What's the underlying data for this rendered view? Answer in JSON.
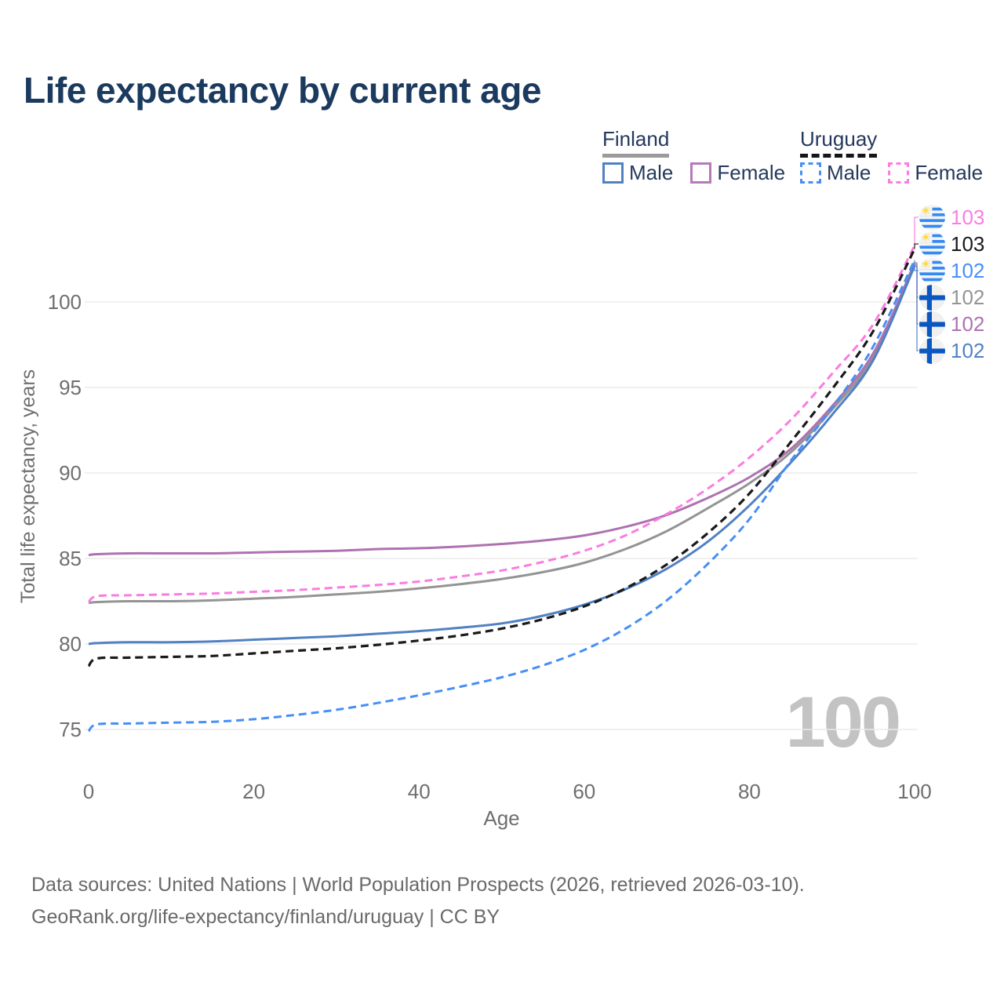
{
  "title": "Life expectancy by current age",
  "legend": {
    "groups": [
      {
        "label": "Finland",
        "line_style": "solid",
        "line_color": "#9b9b9b",
        "items": [
          {
            "label": "Male",
            "color": "#5181c2",
            "line_style": "solid"
          },
          {
            "label": "Female",
            "color": "#b77ab9",
            "line_style": "solid"
          }
        ]
      },
      {
        "label": "Uruguay",
        "line_style": "dashed",
        "line_color": "#161616",
        "items": [
          {
            "label": "Male",
            "color": "#478ff5",
            "line_style": "dashed"
          },
          {
            "label": "Female",
            "color": "#fb7ce1",
            "line_style": "dashed"
          }
        ]
      }
    ]
  },
  "chart_data": {
    "type": "line",
    "title": "Life expectancy by current age",
    "xlabel": "Age",
    "ylabel": "Total life expectancy, years",
    "xlim": [
      0,
      100
    ],
    "ylim": [
      73.5,
      104.5
    ],
    "x_ticks": [
      0,
      20,
      40,
      60,
      80,
      100
    ],
    "y_ticks": [
      75,
      80,
      85,
      90,
      95,
      100
    ],
    "grid": "horizontal",
    "legend_position": "top-right",
    "watermark": "100",
    "x": [
      0,
      1,
      5,
      10,
      15,
      20,
      25,
      30,
      35,
      40,
      45,
      50,
      55,
      60,
      65,
      70,
      75,
      80,
      85,
      90,
      95,
      100
    ],
    "series": [
      {
        "key": "finland_total",
        "name": "Finland (both sexes)",
        "country": "Finland",
        "sex": "Both",
        "color": "#949494",
        "line_style": "solid",
        "end_label": "102",
        "values": [
          82.4,
          82.45,
          82.5,
          82.5,
          82.55,
          82.65,
          82.75,
          82.9,
          83.05,
          83.25,
          83.5,
          83.8,
          84.2,
          84.75,
          85.55,
          86.6,
          87.95,
          89.4,
          91.2,
          93.7,
          96.8,
          102.3
        ]
      },
      {
        "key": "finland_female",
        "name": "Finland Female",
        "country": "Finland",
        "sex": "Female",
        "color": "#ae72b0",
        "line_style": "solid",
        "end_label": "102",
        "values": [
          85.2,
          85.25,
          85.3,
          85.3,
          85.3,
          85.35,
          85.4,
          85.45,
          85.55,
          85.6,
          85.7,
          85.85,
          86.05,
          86.35,
          86.85,
          87.55,
          88.55,
          89.75,
          91.4,
          93.9,
          97.0,
          102.2
        ]
      },
      {
        "key": "finland_male",
        "name": "Finland Male",
        "country": "Finland",
        "sex": "Male",
        "color": "#5181c2",
        "line_style": "solid",
        "end_label": "102",
        "values": [
          80.0,
          80.05,
          80.1,
          80.1,
          80.15,
          80.25,
          80.35,
          80.45,
          80.6,
          80.75,
          80.95,
          81.2,
          81.65,
          82.3,
          83.2,
          84.4,
          86.0,
          88.1,
          90.6,
          93.4,
          96.6,
          102.1
        ]
      },
      {
        "key": "uruguay_female",
        "name": "Uruguay Female",
        "country": "Uruguay",
        "sex": "Female",
        "color": "#fb7ce1",
        "line_style": "dashed",
        "end_label": "103",
        "values": [
          82.45,
          82.8,
          82.85,
          82.9,
          82.95,
          83.05,
          83.15,
          83.3,
          83.45,
          83.65,
          83.95,
          84.3,
          84.8,
          85.45,
          86.35,
          87.6,
          89.1,
          90.9,
          93.1,
          95.8,
          98.7,
          103.3
        ]
      },
      {
        "key": "uruguay_total",
        "name": "Uruguay (both sexes)",
        "country": "Uruguay",
        "sex": "Both",
        "color": "#1a1a1a",
        "line_style": "dashed",
        "end_label": "103",
        "values": [
          78.7,
          79.15,
          79.2,
          79.25,
          79.3,
          79.45,
          79.6,
          79.75,
          79.95,
          80.2,
          80.5,
          80.9,
          81.45,
          82.2,
          83.25,
          84.65,
          86.5,
          88.8,
          91.8,
          94.9,
          98.3,
          103.1
        ]
      },
      {
        "key": "uruguay_male",
        "name": "Uruguay Male",
        "country": "Uruguay",
        "sex": "Male",
        "color": "#478ff5",
        "line_style": "dashed",
        "end_label": "102",
        "values": [
          74.9,
          75.3,
          75.35,
          75.4,
          75.45,
          75.6,
          75.85,
          76.15,
          76.55,
          77.0,
          77.5,
          78.05,
          78.75,
          79.65,
          80.9,
          82.55,
          84.7,
          87.3,
          90.7,
          93.8,
          97.4,
          102.45
        ]
      }
    ],
    "end_label_order": [
      "uruguay_female",
      "uruguay_total",
      "uruguay_male",
      "finland_total",
      "finland_female",
      "finland_male"
    ]
  },
  "footer": {
    "line1": "Data sources: United Nations | World Population Prospects (2026, retrieved 2026-03-10).",
    "line2": "GeoRank.org/life-expectancy/finland/uruguay | CC BY"
  }
}
